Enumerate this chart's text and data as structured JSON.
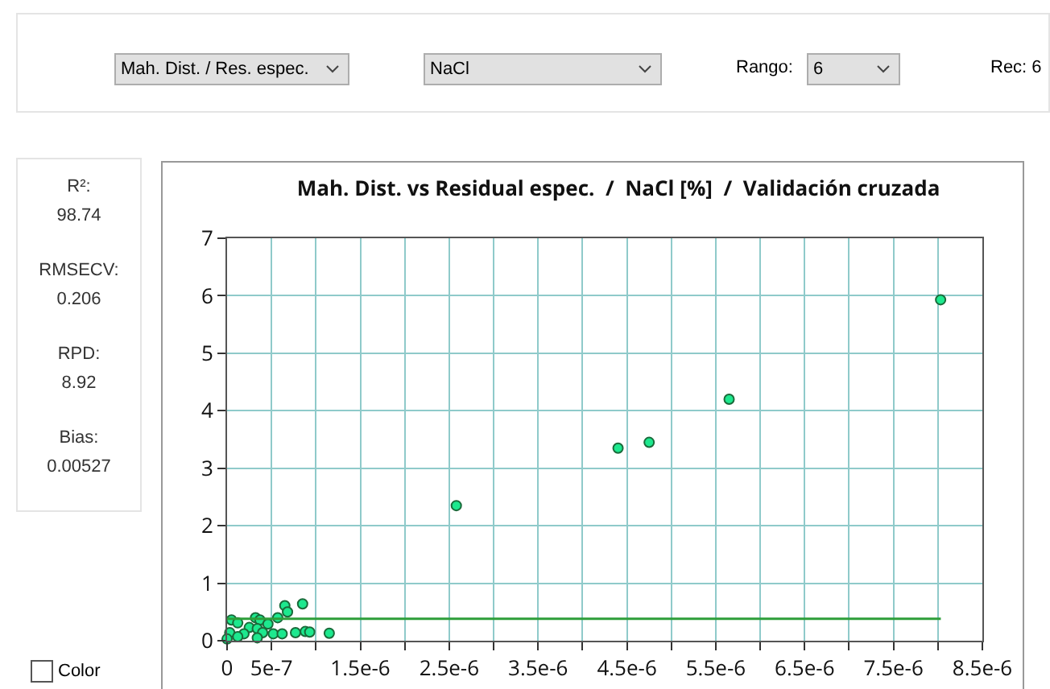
{
  "chart_data": [
    {
      "type": "scatter",
      "title": "Mah. Dist. vs Residual espec.  /  NaCl [%]  /  Validación cruzada",
      "series": [
        {
          "color": "#1de88e",
          "x": [
            8.03e-06,
            5.65e-06,
            4.75e-06,
            4.4e-06,
            2.58e-06,
            1.15e-06,
            8.5e-07,
            6.5e-07,
            6.8e-07,
            5.7e-07,
            3.2e-07,
            3.7e-07,
            5e-08,
            1.2e-07,
            2.5e-07,
            3.4e-07,
            4.6e-07,
            3e-08,
            1.9e-07,
            4e-07,
            5.2e-07,
            6.2e-07,
            7.7e-07,
            8.8e-07,
            9.3e-07,
            0,
            3.4e-07,
            1.2e-07
          ],
          "values": [
            5.93,
            4.2,
            3.45,
            3.35,
            2.35,
            0.13,
            0.64,
            0.61,
            0.5,
            0.4,
            0.4,
            0.36,
            0.36,
            0.31,
            0.23,
            0.21,
            0.29,
            0.14,
            0.12,
            0.14,
            0.12,
            0.12,
            0.14,
            0.16,
            0.15,
            0.03,
            0.05,
            0.07
          ]
        }
      ],
      "xlim": [
        0,
        8.5e-06
      ],
      "xticks": [
        {
          "value": 0,
          "label": "0"
        },
        {
          "value": 5e-07,
          "label": "5e-7"
        },
        {
          "value": 1e-06,
          "label": null
        },
        {
          "value": 1.5e-06,
          "label": "1.5e-6"
        },
        {
          "value": 2e-06,
          "label": null
        },
        {
          "value": 2.5e-06,
          "label": "2.5e-6"
        },
        {
          "value": 3e-06,
          "label": null
        },
        {
          "value": 3.5e-06,
          "label": "3.5e-6"
        },
        {
          "value": 4e-06,
          "label": null
        },
        {
          "value": 4.5e-06,
          "label": "4.5e-6"
        },
        {
          "value": 5e-06,
          "label": null
        },
        {
          "value": 5.5e-06,
          "label": "5.5e-6"
        },
        {
          "value": 6e-06,
          "label": null
        },
        {
          "value": 6.5e-06,
          "label": "6.5e-6"
        },
        {
          "value": 7e-06,
          "label": null
        },
        {
          "value": 7.5e-06,
          "label": "7.5e-6"
        },
        {
          "value": 8e-06,
          "label": null
        },
        {
          "value": 8.5e-06,
          "label": "8.5e-6"
        }
      ],
      "ylim": [
        0,
        7
      ],
      "yticks": [
        0,
        1,
        2,
        3,
        4,
        5,
        6,
        7
      ],
      "ref_lines": [
        {
          "axis": "y",
          "value": 0.38,
          "color": "#2e9e3a"
        }
      ],
      "grid": true,
      "legend": false,
      "marker": "circle"
    },
    {
      "type": "other",
      "annotations": [
        "Mah. Dist. / Res. espec.",
        "NaCl",
        "Rango:",
        "6",
        "Rec: 6"
      ]
    },
    {
      "type": "other",
      "annotations": [
        "R²:",
        "98.74",
        "RMSECV:",
        "0.206",
        "RPD:",
        "8.92",
        "Bias:",
        "0.00527",
        "Color"
      ]
    }
  ]
}
